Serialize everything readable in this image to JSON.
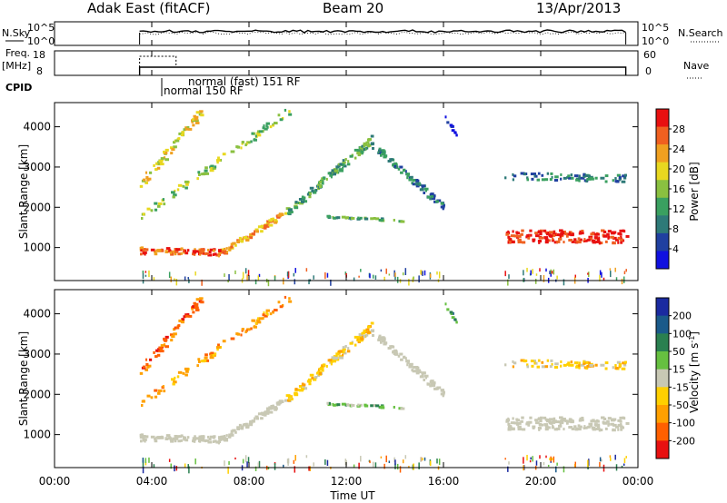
{
  "header": {
    "title": "Adak East (fitACF)",
    "beam": "Beam 20",
    "date": "13/Apr/2013"
  },
  "top_panels": {
    "nsky_label": "N.Sky",
    "nsearch_label": "N.Search",
    "noise_ticks_left": [
      "10^5",
      "10^0"
    ],
    "noise_ticks_right": [
      "10^5",
      "10^0"
    ],
    "freq_label_1": "Freq.",
    "freq_label_2": "[MHz]",
    "freq_ticks": [
      "18",
      "8"
    ],
    "nave_label": "Nave",
    "nave_ticks": [
      "60",
      "0"
    ],
    "cpid_label": "CPID",
    "cpid_modes": [
      "normal (fast) 151 RF",
      "normal 150 RF"
    ]
  },
  "colors": {
    "power_scale": [
      "#1010e0",
      "#2040a0",
      "#2e7a78",
      "#3aa060",
      "#8ac040",
      "#e8d820",
      "#f0a020",
      "#f06020",
      "#e81010"
    ],
    "velocity_scale": [
      "#1a2aa0",
      "#1a5a8a",
      "#2a8050",
      "#66c040",
      "#c8c8b4",
      "#ffd000",
      "#ffa000",
      "#ff6000",
      "#e81010"
    ],
    "ground_scatter": "#c8c8b4"
  },
  "chart_data": [
    {
      "type": "heatmap",
      "title": "Power",
      "xlabel": "",
      "ylabel": "Slant Range [km]",
      "xlim": [
        0,
        24
      ],
      "ylim": [
        180,
        4600
      ],
      "y_ticks": [
        "1000",
        "2000",
        "3000",
        "4000"
      ],
      "colorbar_label": "Power [dB]",
      "colorbar_ticks": [
        "28",
        "24",
        "20",
        "16",
        "12",
        "8",
        "4"
      ],
      "colorbar_range": [
        0,
        32
      ]
    },
    {
      "type": "heatmap",
      "title": "Velocity",
      "xlabel": "Time UT",
      "ylabel": "Slant Range [km]",
      "xlim": [
        0,
        24
      ],
      "ylim": [
        180,
        4600
      ],
      "x_ticks": [
        "00:00",
        "04:00",
        "08:00",
        "12:00",
        "16:00",
        "20:00",
        "00:00"
      ],
      "y_ticks": [
        "1000",
        "2000",
        "3000",
        "4000"
      ],
      "colorbar_label": "Velocity [m s",
      "colorbar_unit_sup": "-1",
      "colorbar_ticks": [
        "200",
        "100",
        "50",
        "15",
        "-15",
        "-50",
        "-100",
        "-200"
      ]
    }
  ]
}
